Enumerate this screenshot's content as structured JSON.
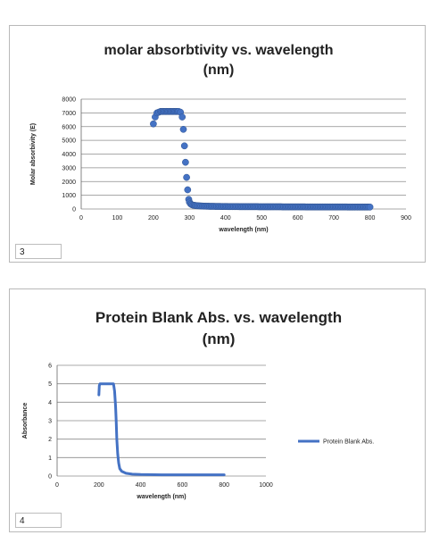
{
  "charts": [
    {
      "figure_number": "3",
      "colors": {
        "series": "#4472c4",
        "grid": "#8c8c8c",
        "border": "#b9b9b9"
      }
    },
    {
      "figure_number": "4",
      "colors": {
        "series": "#4472c4",
        "grid": "#8c8c8c",
        "border": "#b9b9b9"
      }
    }
  ],
  "chart_data": [
    {
      "type": "scatter",
      "title": "molar absorbtivity vs. wavelength (nm)",
      "title_lines": [
        "molar absorbtivity vs. wavelength",
        "(nm)"
      ],
      "xlabel": "wavelength (nm)",
      "ylabel": "Molar absorbivity (E)",
      "xlim": [
        0,
        900
      ],
      "ylim": [
        0,
        8000
      ],
      "xticks": [
        0,
        100,
        200,
        300,
        400,
        500,
        600,
        700,
        800,
        900
      ],
      "yticks": [
        0,
        1000,
        2000,
        3000,
        4000,
        5000,
        6000,
        7000,
        8000
      ],
      "grid": "horizontal",
      "legend": null,
      "series": [
        {
          "x": [
            200,
            205,
            210,
            215,
            220,
            230,
            240,
            250,
            260,
            270,
            275,
            280,
            283,
            286,
            289,
            292,
            295,
            298,
            300,
            303,
            306,
            310,
            320,
            340,
            360,
            400,
            450,
            500,
            550,
            600,
            650,
            700,
            750,
            800
          ],
          "y": [
            6200,
            6700,
            7000,
            7050,
            7100,
            7100,
            7100,
            7100,
            7100,
            7100,
            7050,
            6700,
            5800,
            4600,
            3400,
            2300,
            1400,
            700,
            500,
            380,
            320,
            280,
            240,
            210,
            195,
            180,
            170,
            165,
            160,
            155,
            150,
            150,
            145,
            140
          ]
        }
      ]
    },
    {
      "type": "line",
      "title": "Protein Blank Abs. vs. wavelength (nm)",
      "title_lines": [
        "Protein Blank Abs. vs. wavelength",
        "(nm)"
      ],
      "xlabel": "wavelength (nm)",
      "ylabel": "Absorbance",
      "xlim": [
        0,
        1000
      ],
      "ylim": [
        0,
        6
      ],
      "xticks": [
        0,
        200,
        400,
        600,
        800,
        1000
      ],
      "yticks": [
        0,
        1,
        2,
        3,
        4,
        5,
        6
      ],
      "grid": "horizontal",
      "legend": "right",
      "series": [
        {
          "name": "Protein Blank Abs.",
          "x": [
            200,
            202,
            205,
            210,
            220,
            240,
            260,
            270,
            275,
            280,
            283,
            286,
            290,
            295,
            300,
            310,
            330,
            360,
            400,
            500,
            600,
            700,
            800
          ],
          "y": [
            4.4,
            4.9,
            5.0,
            5.0,
            5.0,
            5.0,
            5.0,
            5.0,
            4.6,
            3.8,
            3.0,
            2.0,
            1.2,
            0.7,
            0.4,
            0.25,
            0.15,
            0.1,
            0.08,
            0.07,
            0.07,
            0.07,
            0.07
          ]
        }
      ]
    }
  ]
}
